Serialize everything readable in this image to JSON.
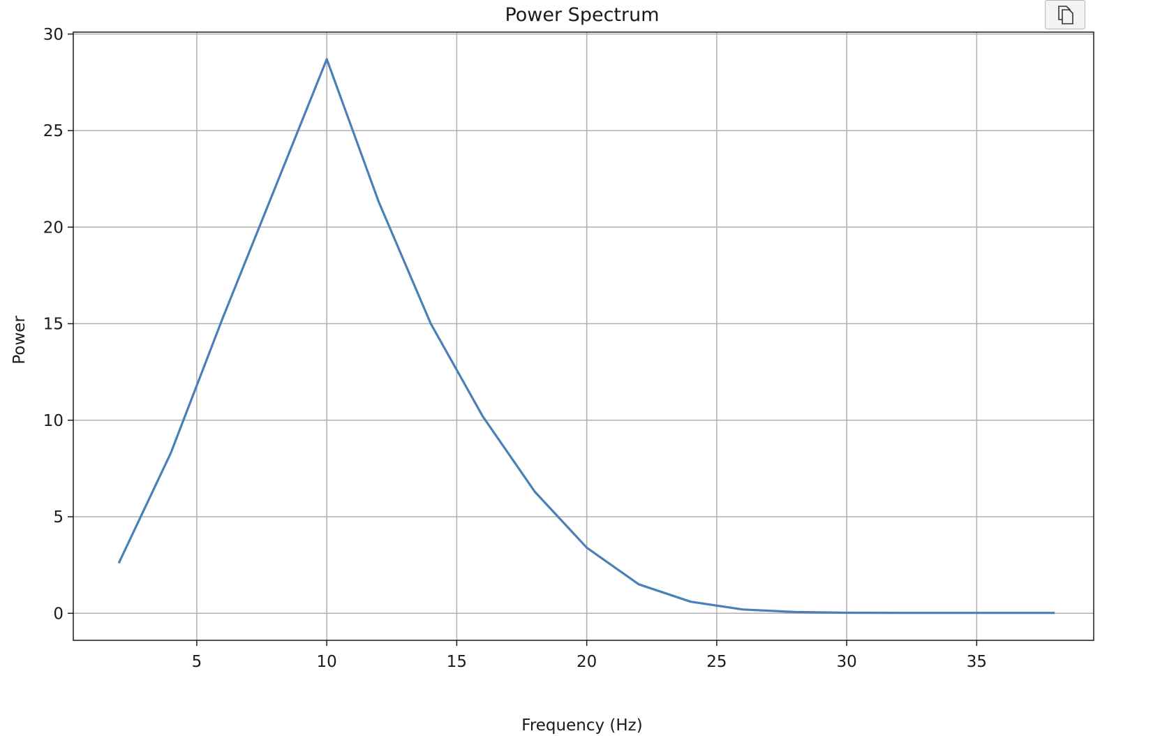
{
  "toolbar": {
    "copy_icon": "copy-icon"
  },
  "chart_data": {
    "type": "line",
    "title": "Power Spectrum",
    "xlabel": "Frequency (Hz)",
    "ylabel": "Power",
    "xlim": [
      0.25,
      39.5
    ],
    "ylim": [
      -1.4,
      30.1
    ],
    "xticks": [
      5,
      10,
      15,
      20,
      25,
      30,
      35
    ],
    "yticks": [
      0,
      5,
      10,
      15,
      20,
      25,
      30
    ],
    "grid": true,
    "line_color": "#4a7fb8",
    "series": [
      {
        "x": [
          2,
          4,
          6,
          8,
          10,
          12,
          14,
          16,
          18,
          20,
          22,
          24,
          26,
          28,
          30,
          32,
          34,
          36,
          38
        ],
        "y": [
          2.6,
          8.3,
          15.3,
          22.0,
          28.7,
          21.3,
          15.0,
          10.2,
          6.3,
          3.4,
          1.5,
          0.6,
          0.2,
          0.07,
          0.03,
          0.02,
          0.02,
          0.02,
          0.02
        ]
      }
    ]
  }
}
